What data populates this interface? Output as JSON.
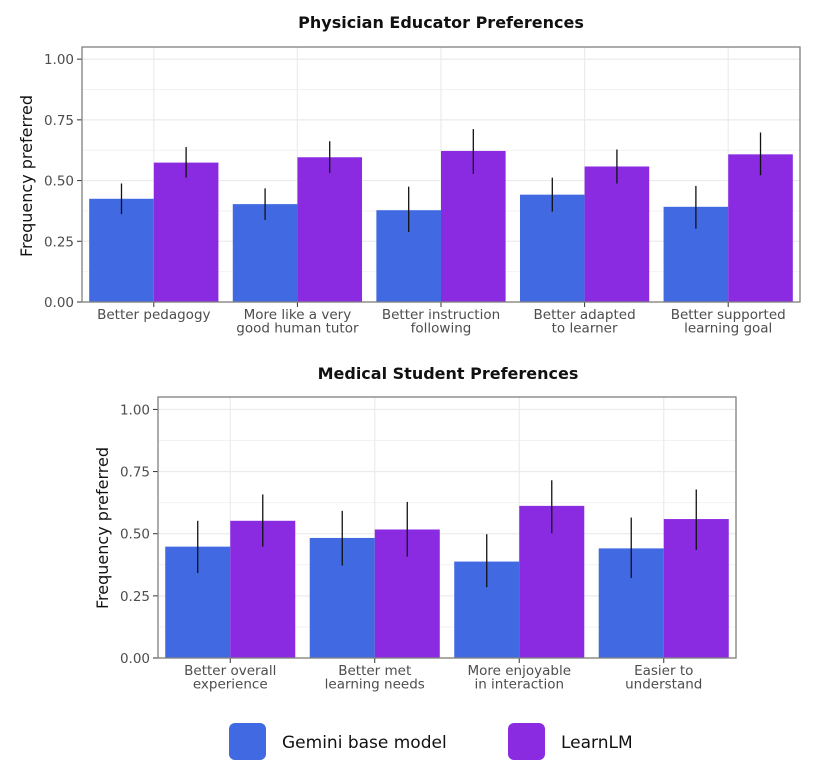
{
  "chart_data": [
    {
      "type": "bar",
      "title": "Physician Educator Preferences",
      "xlabel": "",
      "ylabel": "Frequency preferred",
      "ylim": [
        0,
        1.05
      ],
      "yticks": [
        0,
        0.25,
        0.5,
        0.75,
        1.0
      ],
      "ytick_labels": [
        "0.00",
        "0.25",
        "0.50",
        "0.75",
        "1.00"
      ],
      "grid": true,
      "categories": [
        [
          "Better pedagogy"
        ],
        [
          "More like a very",
          "good human tutor"
        ],
        [
          "Better instruction",
          "following"
        ],
        [
          "Better adapted",
          "to learner"
        ],
        [
          "Better supported",
          "learning goal"
        ]
      ],
      "series": [
        {
          "name": "Gemini base model",
          "values": [
            0.425,
            0.403,
            0.378,
            0.442,
            0.392
          ],
          "err_low": [
            0.362,
            0.338,
            0.288,
            0.372,
            0.302
          ],
          "err_high": [
            0.488,
            0.468,
            0.475,
            0.512,
            0.478
          ]
        },
        {
          "name": "LearnLM",
          "values": [
            0.574,
            0.596,
            0.622,
            0.558,
            0.608
          ],
          "err_low": [
            0.512,
            0.532,
            0.528,
            0.488,
            0.522
          ],
          "err_high": [
            0.638,
            0.662,
            0.712,
            0.628,
            0.698
          ]
        }
      ]
    },
    {
      "type": "bar",
      "title": "Medical Student Preferences",
      "xlabel": "",
      "ylabel": "Frequency preferred",
      "ylim": [
        0,
        1.05
      ],
      "yticks": [
        0,
        0.25,
        0.5,
        0.75,
        1.0
      ],
      "ytick_labels": [
        "0.00",
        "0.25",
        "0.50",
        "0.75",
        "1.00"
      ],
      "grid": true,
      "categories": [
        [
          "Better overall",
          "experience"
        ],
        [
          "Better met",
          "learning needs"
        ],
        [
          "More enjoyable",
          "in interaction"
        ],
        [
          "Easier to",
          "understand"
        ]
      ],
      "series": [
        {
          "name": "Gemini base model",
          "values": [
            0.448,
            0.483,
            0.388,
            0.441
          ],
          "err_low": [
            0.342,
            0.372,
            0.285,
            0.322
          ],
          "err_high": [
            0.552,
            0.592,
            0.498,
            0.565
          ]
        },
        {
          "name": "LearnLM",
          "values": [
            0.552,
            0.517,
            0.612,
            0.559
          ],
          "err_low": [
            0.448,
            0.408,
            0.502,
            0.435
          ],
          "err_high": [
            0.658,
            0.628,
            0.715,
            0.678
          ]
        }
      ]
    }
  ],
  "legend": {
    "position": "bottom-center",
    "items": [
      {
        "label": "Gemini base model",
        "color": "#4169e1"
      },
      {
        "label": "LearnLM",
        "color": "#8a2be2"
      }
    ]
  },
  "colors": {
    "gemini": "#4169e1",
    "learnlm": "#8a2be2",
    "error_bar": "#111111",
    "grid": "#ebebeb",
    "panel_border": "#808080"
  }
}
